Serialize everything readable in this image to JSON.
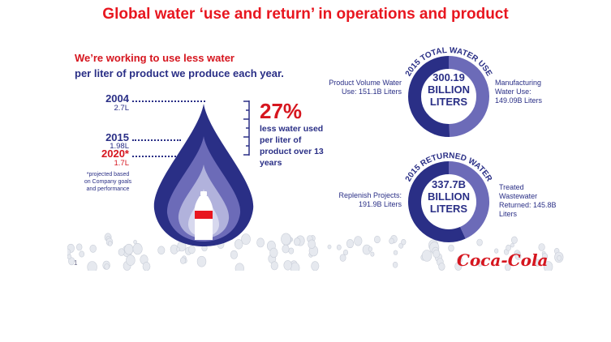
{
  "slide": {
    "title": "Global water ‘use and return’ in operations and product"
  },
  "infographic": {
    "heading_line1": "We’re working to use less water",
    "heading_line2": "per liter of product we produce each year.",
    "timeline": [
      {
        "year": "2004",
        "liters": "2.7L"
      },
      {
        "year": "2015",
        "liters": "1.98L"
      },
      {
        "year": "2020*",
        "liters": "1.7L"
      }
    ],
    "footnote": "*projected based on Company goals and performance",
    "reduction_pct": "27%",
    "reduction_text": "less water used per liter of product over 13 years",
    "total_use": {
      "ring_title": "2015 TOTAL WATER USE",
      "center": [
        "300.19",
        "BILLION",
        "LITERS"
      ],
      "left_label": "Product Volume Water Use: 151.1B Liters",
      "right_label": "Manufacturing Water Use: 149.09B Liters",
      "chart_data": {
        "type": "pie",
        "categories": [
          "Product Volume Water Use",
          "Manufacturing Water Use"
        ],
        "values": [
          151.1,
          149.09
        ],
        "unit": "B Liters"
      }
    },
    "returned": {
      "ring_title": "2015 RETURNED WATER",
      "center": [
        "337.7B",
        "BILLION",
        "LITERS"
      ],
      "left_label": "Replenish Projects: 191.9B Liters",
      "right_label": "Treated Wastewater Returned: 145.8B Liters",
      "chart_data": {
        "type": "pie",
        "categories": [
          "Replenish Projects",
          "Treated Wastewater Returned"
        ],
        "values": [
          191.9,
          145.8
        ],
        "unit": "B Liters"
      }
    },
    "page_number": "1",
    "logo_text": "Coca-Cola"
  },
  "colors": {
    "red": "#e8161f",
    "navy": "#2a2f86",
    "purple": "#6c6bb8",
    "lavender": "#b1b2dc"
  }
}
